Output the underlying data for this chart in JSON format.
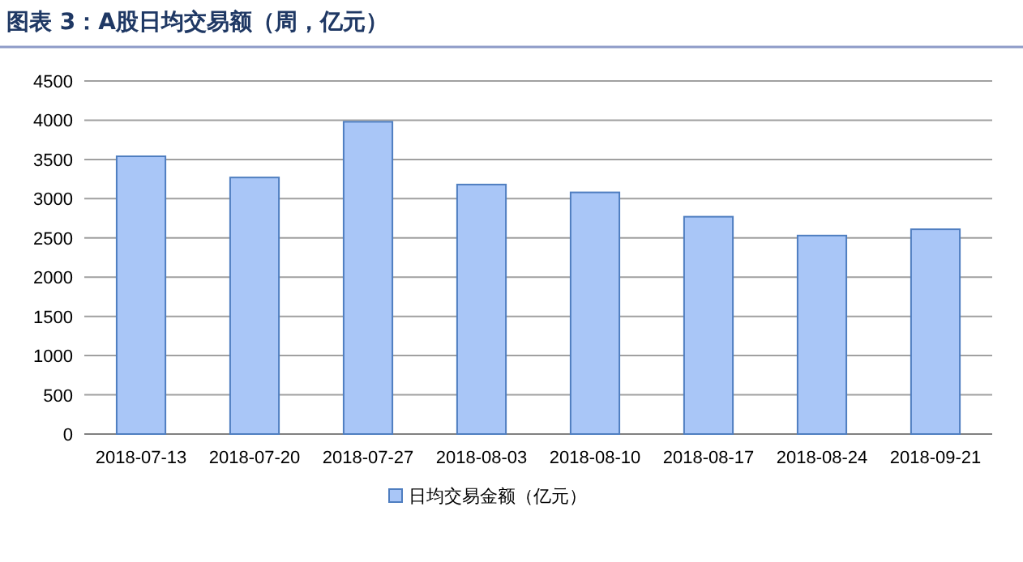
{
  "chart_data": {
    "type": "bar",
    "title": "图表 3：A股日均交易额（周，亿元）",
    "categories": [
      "2018-07-13",
      "2018-07-20",
      "2018-07-27",
      "2018-08-03",
      "2018-08-10",
      "2018-08-17",
      "2018-08-24",
      "2018-09-21"
    ],
    "series": [
      {
        "name": "日均交易金额（亿元）",
        "color": "#a9c6f7",
        "values": [
          3540,
          3270,
          3980,
          3180,
          3080,
          2770,
          2530,
          2610
        ]
      }
    ],
    "ylim": [
      0,
      4500
    ],
    "yticks": [
      0,
      500,
      1000,
      1500,
      2000,
      2500,
      3000,
      3500,
      4000,
      4500
    ],
    "grid": "y",
    "legend": "bottom"
  }
}
